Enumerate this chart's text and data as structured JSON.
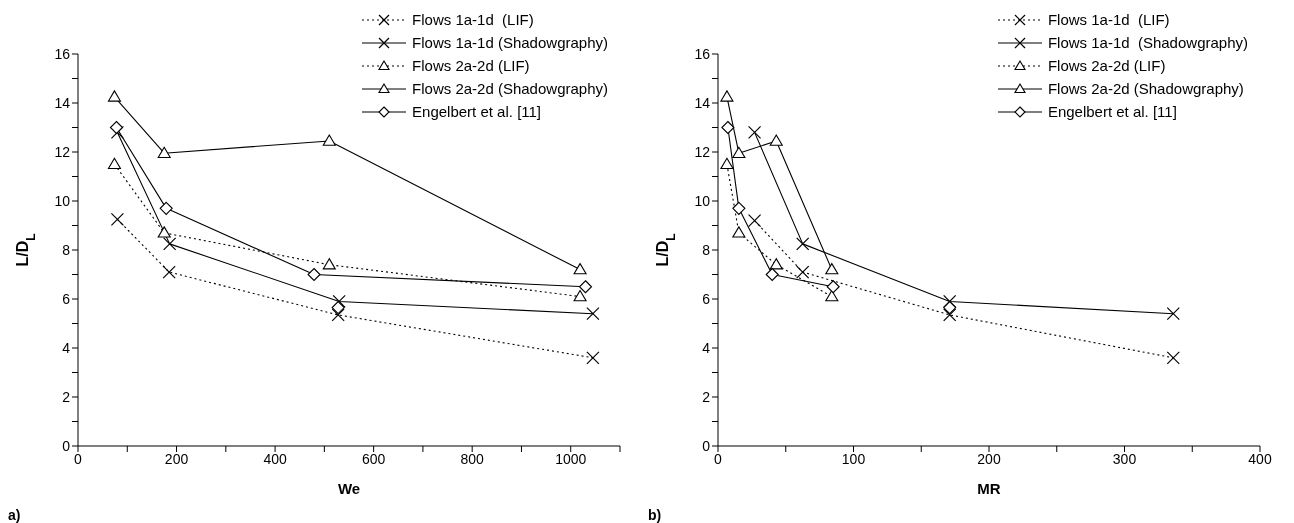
{
  "chart_data": [
    {
      "type": "line",
      "xlabel": "We",
      "ylabel": "L/D$_{L}$",
      "xlim": [
        0,
        1100
      ],
      "ylim": [
        0,
        16
      ],
      "xticks": [
        0,
        {
          "value": 100,
          "label": null
        },
        200,
        {
          "value": 300,
          "label": null
        },
        400,
        {
          "value": 500,
          "label": null
        },
        600,
        {
          "value": 700,
          "label": null
        },
        800,
        {
          "value": 900,
          "label": null
        },
        1000,
        {
          "value": 1100,
          "label": null
        }
      ],
      "yticks": [
        0,
        {
          "value": 1,
          "label": null
        },
        2,
        {
          "value": 3,
          "label": null
        },
        4,
        {
          "value": 5,
          "label": null
        },
        6,
        {
          "value": 7,
          "label": null
        },
        8,
        {
          "value": 9,
          "label": null
        },
        10,
        {
          "value": 11,
          "label": null
        },
        12,
        {
          "value": 13,
          "label": null
        },
        14,
        {
          "value": 15,
          "label": null
        },
        16
      ],
      "grid": false,
      "legend": "top right",
      "annotations": [
        "a)"
      ],
      "series": [
        {
          "name": "Flows 1a-1d  (LIF)",
          "color": "#000000",
          "marker": "cross",
          "line_style": "dotted",
          "x": [
            80,
            185,
            528,
            1045
          ],
          "values": [
            9.25,
            7.1,
            5.35,
            3.6
          ]
        },
        {
          "name": "Flows 1a-1d (Shadowgraphy)",
          "color": "#000000",
          "marker": "cross",
          "line_style": "solid",
          "x": [
            80,
            186,
            530,
            1045
          ],
          "values": [
            12.8,
            8.25,
            5.9,
            5.4
          ]
        },
        {
          "name": "Flows 2a-2d (LIF)",
          "color": "#000000",
          "marker": "triangle",
          "line_style": "dotted",
          "x": [
            74,
            175,
            510,
            1019
          ],
          "values": [
            11.5,
            8.7,
            7.4,
            6.1
          ]
        },
        {
          "name": "Flows 2a-2d (Shadowgraphy)",
          "color": "#000000",
          "marker": "triangle",
          "line_style": "solid",
          "x": [
            74,
            175,
            510,
            1019
          ],
          "values": [
            14.25,
            11.95,
            12.45,
            7.2
          ]
        },
        {
          "name": "Engelbert et al. [11]",
          "color": "#000000",
          "marker": "diamond",
          "line_style": "solid",
          "x": [
            78,
            179,
            479,
            1030
          ],
          "values": [
            13.0,
            9.7,
            7.0,
            6.5
          ]
        },
        {
          "type": "scatter",
          "color": "#000000",
          "marker": "diamond",
          "x": [
            528
          ],
          "values": [
            5.65
          ]
        }
      ]
    },
    {
      "type": "line",
      "xlabel": "MR",
      "ylabel": "L/D$_{L}$",
      "xlim": [
        0,
        400
      ],
      "ylim": [
        0,
        16
      ],
      "xticks": [
        0,
        {
          "value": 50,
          "label": null
        },
        100,
        {
          "value": 150,
          "label": null
        },
        200,
        {
          "value": 250,
          "label": null
        },
        300,
        {
          "value": 350,
          "label": null
        },
        400
      ],
      "yticks": [
        0,
        {
          "value": 1,
          "label": null
        },
        2,
        {
          "value": 3,
          "label": null
        },
        4,
        {
          "value": 5,
          "label": null
        },
        6,
        {
          "value": 7,
          "label": null
        },
        8,
        {
          "value": 9,
          "label": null
        },
        10,
        {
          "value": 11,
          "label": null
        },
        12,
        {
          "value": 13,
          "label": null
        },
        14,
        {
          "value": 15,
          "label": null
        },
        16
      ],
      "grid": false,
      "legend": "top right",
      "annotations": [
        "b)"
      ],
      "series": [
        {
          "name": "Flows 1a-1d  (LIF)",
          "color": "#000000",
          "marker": "cross",
          "line_style": "dotted",
          "x": [
            27,
            62.5,
            171,
            336
          ],
          "values": [
            9.2,
            7.1,
            5.35,
            3.6
          ]
        },
        {
          "name": "Flows 1a-1d  (Shadowgraphy)",
          "color": "#000000",
          "marker": "cross",
          "line_style": "solid",
          "x": [
            27,
            62.5,
            171,
            336
          ],
          "values": [
            12.8,
            8.25,
            5.9,
            5.4
          ]
        },
        {
          "name": "Flows 2a-2d (LIF)",
          "color": "#000000",
          "marker": "triangle",
          "line_style": "dotted",
          "x": [
            6.6,
            15.4,
            43,
            84
          ],
          "values": [
            11.5,
            8.7,
            7.4,
            6.1
          ]
        },
        {
          "name": "Flows 2a-2d (Shadowgraphy)",
          "color": "#000000",
          "marker": "triangle",
          "line_style": "solid",
          "x": [
            6.6,
            15.4,
            43,
            84
          ],
          "values": [
            14.25,
            11.95,
            12.45,
            7.2
          ]
        },
        {
          "name": "Engelbert et al. [11]",
          "color": "#000000",
          "marker": "diamond",
          "line_style": "solid",
          "x": [
            7.3,
            15.4,
            40,
            85
          ],
          "values": [
            13.0,
            9.7,
            7.0,
            6.5
          ]
        },
        {
          "type": "scatter",
          "color": "#000000",
          "marker": "diamond",
          "x": [
            171
          ],
          "values": [
            5.65
          ]
        }
      ]
    }
  ]
}
